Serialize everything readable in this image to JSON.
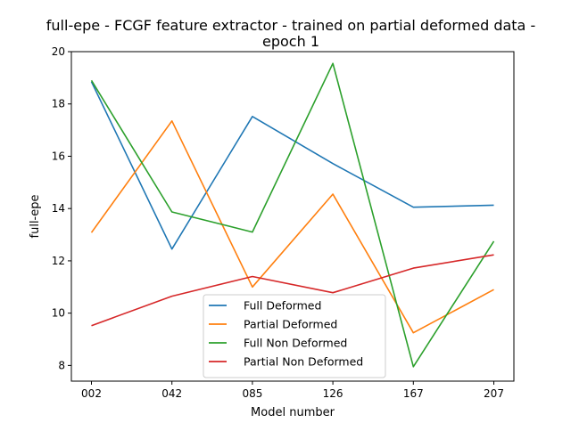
{
  "chart_data": {
    "type": "line",
    "title_line1": "full-epe - FCGF feature extractor -  trained on partial deformed data -",
    "title_line2": "epoch 1",
    "xlabel": "Model number",
    "ylabel": "full-epe",
    "categories": [
      "002",
      "042",
      "085",
      "126",
      "167",
      "207"
    ],
    "ylim": [
      7.4,
      20.0
    ],
    "yticks": [
      8,
      10,
      12,
      14,
      16,
      18,
      20
    ],
    "grid": false,
    "legend_position": "lower center",
    "series": [
      {
        "name": "Full Deformed",
        "color": "#1f77b4",
        "values": [
          18.85,
          12.45,
          17.52,
          15.72,
          14.05,
          14.13
        ]
      },
      {
        "name": "Partial Deformed",
        "color": "#ff7f0e",
        "values": [
          13.08,
          17.35,
          11.0,
          14.55,
          9.25,
          10.9
        ]
      },
      {
        "name": "Full Non Deformed",
        "color": "#2ca02c",
        "values": [
          18.9,
          13.87,
          13.1,
          19.55,
          7.95,
          12.75
        ]
      },
      {
        "name": "Partial Non Deformed",
        "color": "#d62728",
        "values": [
          9.52,
          10.65,
          11.4,
          10.78,
          11.72,
          12.23
        ]
      }
    ]
  }
}
